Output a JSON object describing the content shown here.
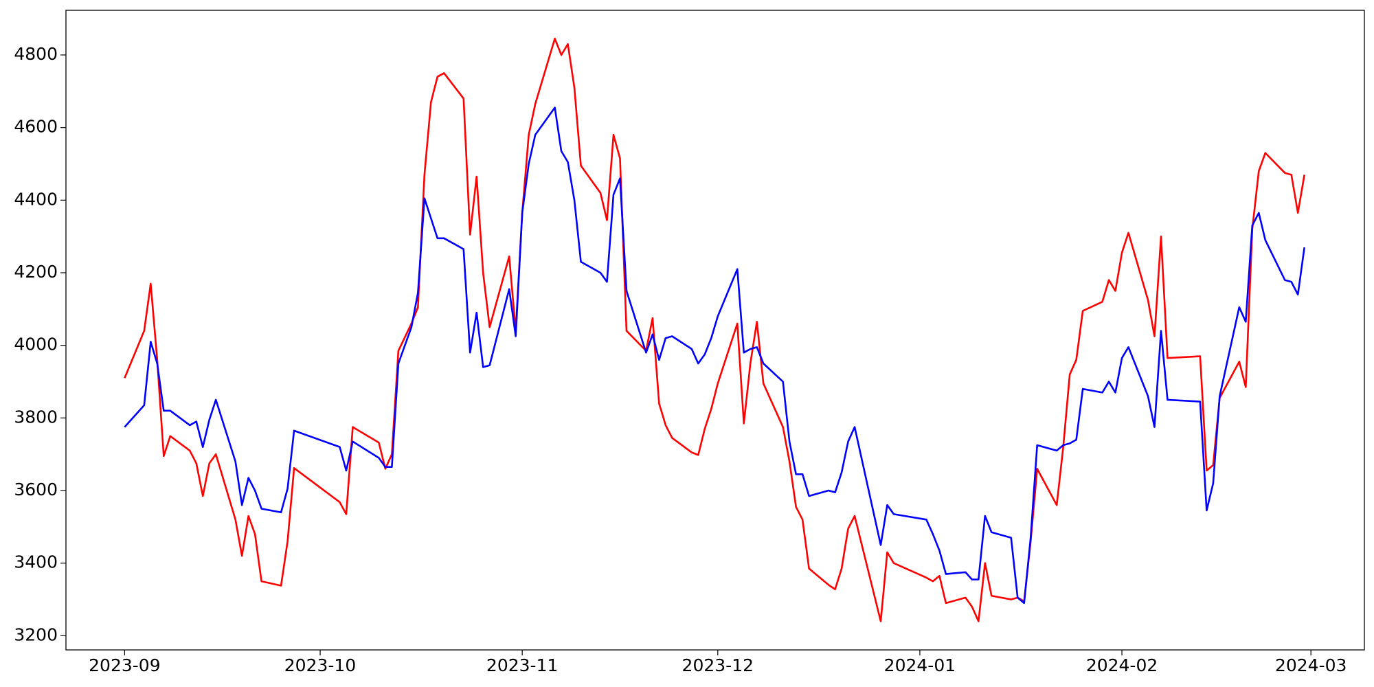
{
  "chart_data": {
    "type": "line",
    "x": [
      0,
      3,
      4,
      5,
      6,
      7,
      10,
      11,
      12,
      13,
      14,
      17,
      18,
      19,
      20,
      21,
      24,
      25,
      26,
      33,
      34,
      35,
      39,
      40,
      41,
      42,
      44,
      45,
      46,
      47,
      48,
      49,
      52,
      53,
      54,
      55,
      56,
      59,
      60,
      61,
      62,
      63,
      66,
      67,
      68,
      69,
      70,
      73,
      74,
      75,
      76,
      77,
      80,
      81,
      82,
      83,
      84,
      87,
      88,
      89,
      90,
      91,
      94,
      95,
      96,
      97,
      98,
      101,
      102,
      103,
      104,
      105,
      108,
      109,
      110,
      111,
      112,
      116,
      117,
      118,
      123,
      124,
      125,
      126,
      129,
      130,
      131,
      132,
      133,
      136,
      137,
      138,
      139,
      140,
      143,
      144,
      145,
      146,
      147,
      150,
      151,
      152,
      153,
      154,
      157,
      158,
      159,
      160,
      165,
      166,
      167,
      168,
      171,
      172,
      173,
      174,
      175,
      178,
      179,
      180,
      181
    ],
    "series": [
      {
        "color": "#ff0000",
        "values": [
          3910,
          4040,
          4170,
          3960,
          3695,
          3750,
          3710,
          3675,
          3585,
          3675,
          3700,
          3520,
          3420,
          3530,
          3480,
          3350,
          3338,
          3460,
          3662,
          3568,
          3535,
          3775,
          3732,
          3660,
          3700,
          3985,
          4060,
          4105,
          4470,
          4670,
          4740,
          4750,
          4680,
          4305,
          4465,
          4200,
          4050,
          4245,
          4040,
          4365,
          4580,
          4665,
          4845,
          4800,
          4830,
          4710,
          4495,
          4420,
          4345,
          4580,
          4515,
          4040,
          3985,
          4075,
          3840,
          3780,
          3745,
          3705,
          3698,
          3770,
          3825,
          3895,
          4060,
          3785,
          3950,
          4065,
          3895,
          3775,
          3680,
          3555,
          3520,
          3385,
          3340,
          3328,
          3385,
          3495,
          3530,
          3240,
          3430,
          3400,
          3360,
          3350,
          3365,
          3290,
          3305,
          3280,
          3240,
          3400,
          3310,
          3300,
          3305,
          3295,
          3460,
          3660,
          3560,
          3720,
          3920,
          3960,
          4095,
          4120,
          4180,
          4150,
          4255,
          4310,
          4125,
          4025,
          4300,
          3965,
          3970,
          3655,
          3670,
          3855,
          3955,
          3885,
          4320,
          4480,
          4530,
          4475,
          4470,
          4365,
          4470
        ]
      },
      {
        "color": "#0000ff",
        "values": [
          3775,
          3835,
          4010,
          3950,
          3820,
          3820,
          3780,
          3790,
          3720,
          3795,
          3850,
          3680,
          3560,
          3635,
          3600,
          3550,
          3540,
          3605,
          3765,
          3720,
          3655,
          3735,
          3690,
          3665,
          3665,
          3950,
          4050,
          4145,
          4405,
          4350,
          4295,
          4295,
          4265,
          3980,
          4090,
          3940,
          3945,
          4155,
          4025,
          4365,
          4500,
          4580,
          4655,
          4535,
          4505,
          4400,
          4230,
          4200,
          4175,
          4415,
          4460,
          4150,
          3980,
          4030,
          3960,
          4020,
          4025,
          3990,
          3950,
          3975,
          4020,
          4080,
          4210,
          3980,
          3990,
          3995,
          3950,
          3900,
          3735,
          3645,
          3645,
          3585,
          3600,
          3595,
          3650,
          3735,
          3775,
          3450,
          3560,
          3535,
          3520,
          3480,
          3435,
          3370,
          3375,
          3355,
          3355,
          3530,
          3485,
          3470,
          3305,
          3290,
          3470,
          3725,
          3710,
          3725,
          3730,
          3740,
          3880,
          3870,
          3900,
          3870,
          3965,
          3995,
          3860,
          3775,
          4040,
          3850,
          3845,
          3545,
          3620,
          3860,
          4105,
          4065,
          4330,
          4365,
          4290,
          4180,
          4175,
          4140,
          4270
        ]
      }
    ],
    "xlim": [
      -9,
      190.2
    ],
    "ylim": [
      3161,
      4923
    ],
    "xticks": [
      {
        "value": 0,
        "label": "2023-09"
      },
      {
        "value": 30,
        "label": "2023-10"
      },
      {
        "value": 61,
        "label": "2023-11"
      },
      {
        "value": 91,
        "label": "2023-12"
      },
      {
        "value": 122,
        "label": "2024-01"
      },
      {
        "value": 153,
        "label": "2024-02"
      },
      {
        "value": 182,
        "label": "2024-03"
      }
    ],
    "yticks": [
      3200,
      3400,
      3600,
      3800,
      4000,
      4200,
      4400,
      4600,
      4800
    ]
  }
}
